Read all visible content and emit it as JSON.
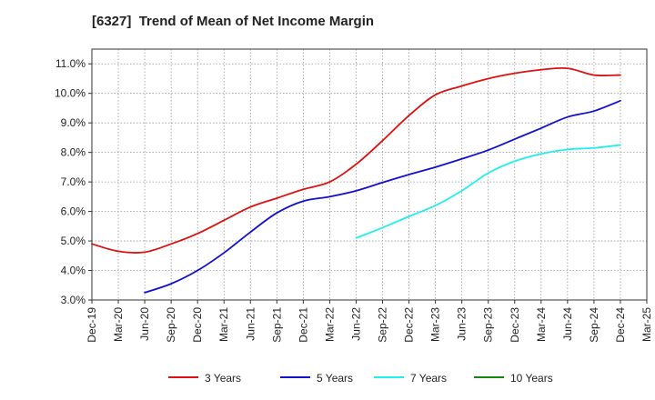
{
  "chart_data": {
    "type": "line",
    "title": "[6327]  Trend of Mean of Net Income Margin",
    "xlabel": "",
    "ylabel": "",
    "y_unit": "%",
    "ylim": [
      3.0,
      11.5
    ],
    "y_ticks": [
      3.0,
      4.0,
      5.0,
      6.0,
      7.0,
      8.0,
      9.0,
      10.0,
      11.0
    ],
    "y_tick_labels": [
      "3.0%",
      "4.0%",
      "5.0%",
      "6.0%",
      "7.0%",
      "8.0%",
      "9.0%",
      "10.0%",
      "11.0%"
    ],
    "x_tick_labels": [
      "Dec-19",
      "Mar-20",
      "Jun-20",
      "Sep-20",
      "Dec-20",
      "Mar-21",
      "Jun-21",
      "Sep-21",
      "Dec-21",
      "Mar-22",
      "Jun-22",
      "Sep-22",
      "Dec-22",
      "Mar-23",
      "Jun-23",
      "Sep-23",
      "Dec-23",
      "Mar-24",
      "Jun-24",
      "Sep-24",
      "Dec-24",
      "Mar-25"
    ],
    "grid": true,
    "legend_position": "bottom",
    "series": [
      {
        "name": "3 Years",
        "color": "#dd1111",
        "x": [
          "Dec-19",
          "Mar-20",
          "Jun-20",
          "Sep-20",
          "Dec-20",
          "Mar-21",
          "Jun-21",
          "Sep-21",
          "Dec-21",
          "Mar-22",
          "Jun-22",
          "Sep-22",
          "Dec-22",
          "Mar-23",
          "Jun-23",
          "Sep-23",
          "Dec-23",
          "Mar-24",
          "Jun-24",
          "Sep-24",
          "Dec-24"
        ],
        "values": [
          4.9,
          4.65,
          4.62,
          4.9,
          5.25,
          5.7,
          6.15,
          6.45,
          6.75,
          7.0,
          7.6,
          8.4,
          9.25,
          9.95,
          10.25,
          10.5,
          10.68,
          10.8,
          10.85,
          10.62,
          10.62
        ]
      },
      {
        "name": "5 Years",
        "color": "#1111cc",
        "x": [
          "Jun-20",
          "Sep-20",
          "Dec-20",
          "Mar-21",
          "Jun-21",
          "Sep-21",
          "Dec-21",
          "Mar-22",
          "Jun-22",
          "Sep-22",
          "Dec-22",
          "Mar-23",
          "Jun-23",
          "Sep-23",
          "Dec-23",
          "Mar-24",
          "Jun-24",
          "Sep-24",
          "Dec-24"
        ],
        "values": [
          3.25,
          3.55,
          4.0,
          4.6,
          5.3,
          5.95,
          6.35,
          6.5,
          6.7,
          6.98,
          7.25,
          7.5,
          7.78,
          8.08,
          8.45,
          8.82,
          9.2,
          9.4,
          9.75
        ]
      },
      {
        "name": "7 Years",
        "color": "#22eeee",
        "x": [
          "Jun-22",
          "Sep-22",
          "Dec-22",
          "Mar-23",
          "Jun-23",
          "Sep-23",
          "Dec-23",
          "Mar-24",
          "Jun-24",
          "Sep-24",
          "Dec-24"
        ],
        "values": [
          5.1,
          5.45,
          5.83,
          6.2,
          6.7,
          7.3,
          7.7,
          7.95,
          8.1,
          8.15,
          8.25
        ]
      },
      {
        "name": "10 Years",
        "color": "#118811",
        "x": [],
        "values": []
      }
    ]
  }
}
